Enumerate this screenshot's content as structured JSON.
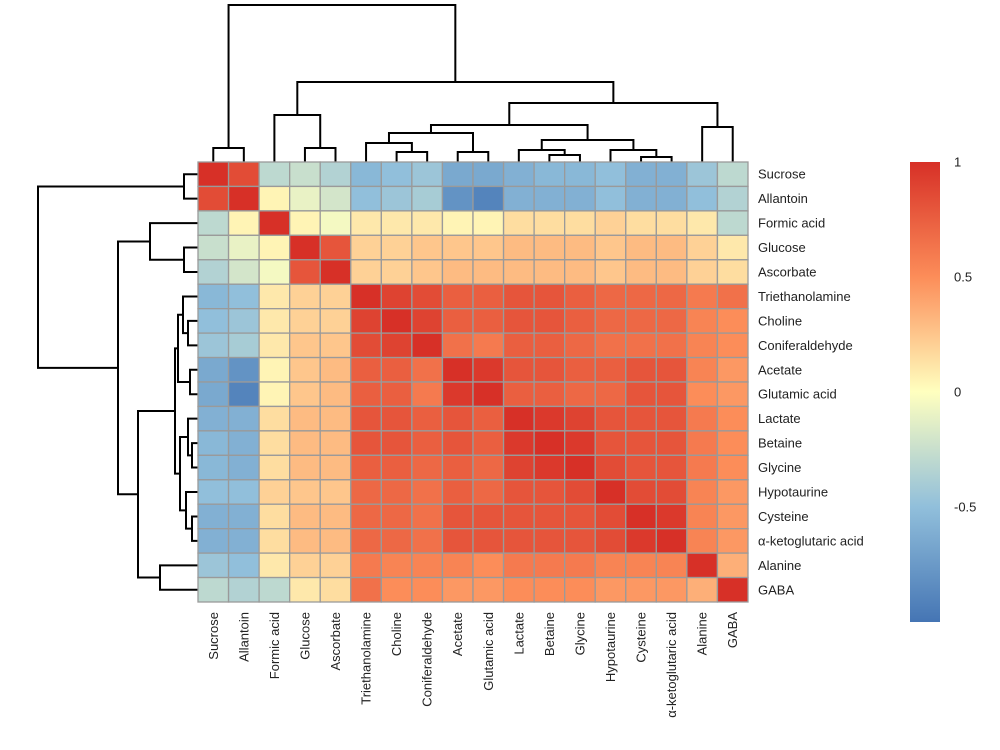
{
  "chart_data": {
    "type": "heatmap",
    "title": "",
    "xlabel": "",
    "ylabel": "",
    "row_labels": [
      "Sucrose",
      "Allantoin",
      "Formic acid",
      "Glucose",
      "Ascorbate",
      "Triethanolamine",
      "Choline",
      "Coniferaldehyde",
      "Acetate",
      "Glutamic acid",
      "Lactate",
      "Betaine",
      "Glycine",
      "Hypotaurine",
      "Cysteine",
      "α-ketoglutaric acid",
      "Alanine",
      "GABA"
    ],
    "col_labels": [
      "Sucrose",
      "Allantoin",
      "Formic acid",
      "Glucose",
      "Ascorbate",
      "Triethanolamine",
      "Choline",
      "Coniferaldehyde",
      "Acetate",
      "Glutamic acid",
      "Lactate",
      "Betaine",
      "Glycine",
      "Hypotaurine",
      "Cysteine",
      "α-ketoglutaric acid",
      "Alanine",
      "GABA"
    ],
    "values": [
      [
        1.0,
        0.85,
        -0.3,
        -0.25,
        -0.35,
        -0.55,
        -0.5,
        -0.45,
        -0.65,
        -0.65,
        -0.6,
        -0.55,
        -0.55,
        -0.5,
        -0.6,
        -0.6,
        -0.45,
        -0.3
      ],
      [
        0.85,
        1.0,
        0.05,
        -0.1,
        -0.2,
        -0.5,
        -0.45,
        -0.4,
        -0.8,
        -0.9,
        -0.6,
        -0.6,
        -0.6,
        -0.5,
        -0.6,
        -0.6,
        -0.5,
        -0.35
      ],
      [
        -0.3,
        0.05,
        1.0,
        0.05,
        -0.05,
        0.1,
        0.1,
        0.1,
        0.05,
        0.05,
        0.15,
        0.15,
        0.15,
        0.2,
        0.15,
        0.15,
        0.1,
        -0.3
      ],
      [
        -0.25,
        -0.1,
        0.05,
        1.0,
        0.8,
        0.2,
        0.2,
        0.25,
        0.25,
        0.25,
        0.3,
        0.3,
        0.3,
        0.25,
        0.3,
        0.3,
        0.2,
        0.1
      ],
      [
        -0.35,
        -0.2,
        -0.05,
        0.8,
        1.0,
        0.2,
        0.2,
        0.25,
        0.3,
        0.3,
        0.3,
        0.3,
        0.3,
        0.25,
        0.3,
        0.3,
        0.2,
        0.15
      ],
      [
        -0.55,
        -0.5,
        0.1,
        0.2,
        0.2,
        1.0,
        0.9,
        0.85,
        0.75,
        0.75,
        0.8,
        0.8,
        0.75,
        0.7,
        0.7,
        0.7,
        0.6,
        0.65
      ],
      [
        -0.5,
        -0.45,
        0.1,
        0.2,
        0.2,
        0.9,
        1.0,
        0.9,
        0.75,
        0.75,
        0.8,
        0.8,
        0.75,
        0.7,
        0.7,
        0.7,
        0.55,
        0.5
      ],
      [
        -0.45,
        -0.4,
        0.1,
        0.25,
        0.25,
        0.85,
        0.9,
        1.0,
        0.65,
        0.6,
        0.75,
        0.75,
        0.7,
        0.65,
        0.65,
        0.65,
        0.55,
        0.5
      ],
      [
        -0.65,
        -0.8,
        0.05,
        0.25,
        0.3,
        0.75,
        0.75,
        0.65,
        1.0,
        0.95,
        0.8,
        0.8,
        0.75,
        0.75,
        0.8,
        0.8,
        0.55,
        0.45
      ],
      [
        -0.65,
        -0.9,
        0.05,
        0.25,
        0.3,
        0.75,
        0.75,
        0.6,
        0.95,
        1.0,
        0.75,
        0.75,
        0.7,
        0.7,
        0.8,
        0.8,
        0.5,
        0.45
      ],
      [
        -0.6,
        -0.6,
        0.15,
        0.3,
        0.3,
        0.8,
        0.8,
        0.75,
        0.8,
        0.75,
        1.0,
        0.95,
        0.9,
        0.8,
        0.8,
        0.8,
        0.6,
        0.5
      ],
      [
        -0.55,
        -0.6,
        0.15,
        0.3,
        0.3,
        0.8,
        0.8,
        0.75,
        0.8,
        0.75,
        0.95,
        1.0,
        0.95,
        0.8,
        0.8,
        0.8,
        0.6,
        0.5
      ],
      [
        -0.55,
        -0.6,
        0.15,
        0.3,
        0.3,
        0.75,
        0.75,
        0.7,
        0.75,
        0.7,
        0.9,
        0.95,
        1.0,
        0.85,
        0.8,
        0.8,
        0.6,
        0.5
      ],
      [
        -0.5,
        -0.5,
        0.2,
        0.25,
        0.25,
        0.7,
        0.7,
        0.65,
        0.75,
        0.7,
        0.8,
        0.8,
        0.85,
        1.0,
        0.85,
        0.85,
        0.55,
        0.45
      ],
      [
        -0.6,
        -0.6,
        0.15,
        0.3,
        0.3,
        0.7,
        0.7,
        0.65,
        0.8,
        0.8,
        0.8,
        0.8,
        0.8,
        0.85,
        1.0,
        0.95,
        0.55,
        0.45
      ],
      [
        -0.6,
        -0.6,
        0.15,
        0.3,
        0.3,
        0.7,
        0.7,
        0.65,
        0.8,
        0.8,
        0.8,
        0.8,
        0.8,
        0.85,
        0.95,
        1.0,
        0.55,
        0.45
      ],
      [
        -0.45,
        -0.5,
        0.1,
        0.2,
        0.2,
        0.6,
        0.55,
        0.55,
        0.55,
        0.5,
        0.6,
        0.6,
        0.6,
        0.55,
        0.55,
        0.55,
        1.0,
        0.35
      ],
      [
        -0.3,
        -0.35,
        -0.3,
        0.1,
        0.15,
        0.65,
        0.5,
        0.5,
        0.45,
        0.45,
        0.5,
        0.5,
        0.5,
        0.45,
        0.45,
        0.45,
        0.35,
        1.0
      ]
    ],
    "colorbar": {
      "range": [
        -1,
        1
      ],
      "tick_labels": [
        "1",
        "0.5",
        "0",
        "-0.5"
      ],
      "tick_values": [
        1,
        0.5,
        0,
        -0.5
      ],
      "colors": [
        "#4575b4",
        "#91bfdb",
        "#ffffbf",
        "#fc8d59",
        "#d73027"
      ]
    },
    "legend_placement": "right",
    "dendrograms": [
      "top",
      "left"
    ]
  }
}
